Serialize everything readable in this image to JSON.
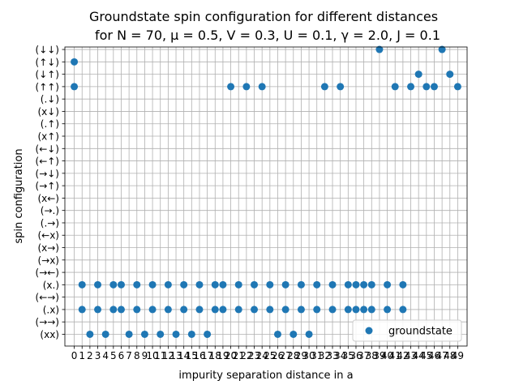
{
  "chart_data": {
    "type": "scatter",
    "title_line1": "Groundstate spin configuration for different distances",
    "title_line2": "for N = 70, μ =  0.5, V = 0.3, U = 0.1, γ = 2.0, J = 0.1",
    "xlabel": "impurity separation distance in a",
    "ylabel": "spin configuration",
    "xlim": [
      -1.2,
      50.2
    ],
    "ylim": [
      -0.95,
      23.2
    ],
    "grid": true,
    "legend_position": "lower-right",
    "x_ticks": [
      0,
      1,
      2,
      3,
      4,
      5,
      6,
      7,
      8,
      9,
      10,
      11,
      12,
      13,
      14,
      15,
      16,
      17,
      18,
      19,
      20,
      21,
      22,
      23,
      24,
      25,
      26,
      27,
      28,
      29,
      30,
      31,
      32,
      33,
      34,
      35,
      36,
      37,
      38,
      39,
      40,
      41,
      42,
      43,
      44,
      45,
      46,
      47,
      48,
      49
    ],
    "y_categories": [
      "(xx)",
      "(→→)",
      "(.x)",
      "(←→)",
      "(x.)",
      "(→←)",
      "(→x)",
      "(x→)",
      "(←x)",
      "(.→)",
      "(→.)",
      "(x←)",
      "(→↑)",
      "(→↓)",
      "(←↑)",
      "(←↓)",
      "(x↑)",
      "(.↑)",
      "(x↓)",
      "(.↓)",
      "(↑↑)",
      "(↓↑)",
      "(↑↓)",
      "(↓↓)"
    ],
    "series": [
      {
        "name": "groundstate",
        "color": "#1f77b4",
        "points": [
          {
            "x": 0,
            "y": 20
          },
          {
            "x": 0,
            "y": 22
          },
          {
            "x": 1,
            "y": 2
          },
          {
            "x": 1,
            "y": 4
          },
          {
            "x": 2,
            "y": 0
          },
          {
            "x": 3,
            "y": 2
          },
          {
            "x": 3,
            "y": 4
          },
          {
            "x": 4,
            "y": 0
          },
          {
            "x": 5,
            "y": 2
          },
          {
            "x": 5,
            "y": 4
          },
          {
            "x": 6,
            "y": 2
          },
          {
            "x": 6,
            "y": 4
          },
          {
            "x": 7,
            "y": 0
          },
          {
            "x": 8,
            "y": 2
          },
          {
            "x": 8,
            "y": 4
          },
          {
            "x": 9,
            "y": 0
          },
          {
            "x": 10,
            "y": 2
          },
          {
            "x": 10,
            "y": 4
          },
          {
            "x": 11,
            "y": 0
          },
          {
            "x": 12,
            "y": 2
          },
          {
            "x": 12,
            "y": 4
          },
          {
            "x": 13,
            "y": 0
          },
          {
            "x": 14,
            "y": 2
          },
          {
            "x": 14,
            "y": 4
          },
          {
            "x": 15,
            "y": 0
          },
          {
            "x": 16,
            "y": 2
          },
          {
            "x": 16,
            "y": 4
          },
          {
            "x": 17,
            "y": 0
          },
          {
            "x": 18,
            "y": 2
          },
          {
            "x": 18,
            "y": 4
          },
          {
            "x": 19,
            "y": 2
          },
          {
            "x": 19,
            "y": 4
          },
          {
            "x": 20,
            "y": 20
          },
          {
            "x": 21,
            "y": 2
          },
          {
            "x": 21,
            "y": 4
          },
          {
            "x": 22,
            "y": 20
          },
          {
            "x": 23,
            "y": 2
          },
          {
            "x": 23,
            "y": 4
          },
          {
            "x": 24,
            "y": 20
          },
          {
            "x": 25,
            "y": 2
          },
          {
            "x": 25,
            "y": 4
          },
          {
            "x": 26,
            "y": 0
          },
          {
            "x": 27,
            "y": 2
          },
          {
            "x": 27,
            "y": 4
          },
          {
            "x": 28,
            "y": 0
          },
          {
            "x": 29,
            "y": 2
          },
          {
            "x": 29,
            "y": 4
          },
          {
            "x": 30,
            "y": 0
          },
          {
            "x": 31,
            "y": 2
          },
          {
            "x": 31,
            "y": 4
          },
          {
            "x": 32,
            "y": 20
          },
          {
            "x": 33,
            "y": 2
          },
          {
            "x": 33,
            "y": 4
          },
          {
            "x": 34,
            "y": 20
          },
          {
            "x": 35,
            "y": 2
          },
          {
            "x": 35,
            "y": 4
          },
          {
            "x": 36,
            "y": 2
          },
          {
            "x": 36,
            "y": 4
          },
          {
            "x": 37,
            "y": 2
          },
          {
            "x": 37,
            "y": 4
          },
          {
            "x": 38,
            "y": 2
          },
          {
            "x": 38,
            "y": 4
          },
          {
            "x": 39,
            "y": 23
          },
          {
            "x": 40,
            "y": 2
          },
          {
            "x": 40,
            "y": 4
          },
          {
            "x": 41,
            "y": 20
          },
          {
            "x": 42,
            "y": 2
          },
          {
            "x": 42,
            "y": 4
          },
          {
            "x": 43,
            "y": 20
          },
          {
            "x": 44,
            "y": 21
          },
          {
            "x": 45,
            "y": 20
          },
          {
            "x": 46,
            "y": 20
          },
          {
            "x": 47,
            "y": 23
          },
          {
            "x": 48,
            "y": 21
          },
          {
            "x": 49,
            "y": 20
          }
        ]
      }
    ]
  }
}
